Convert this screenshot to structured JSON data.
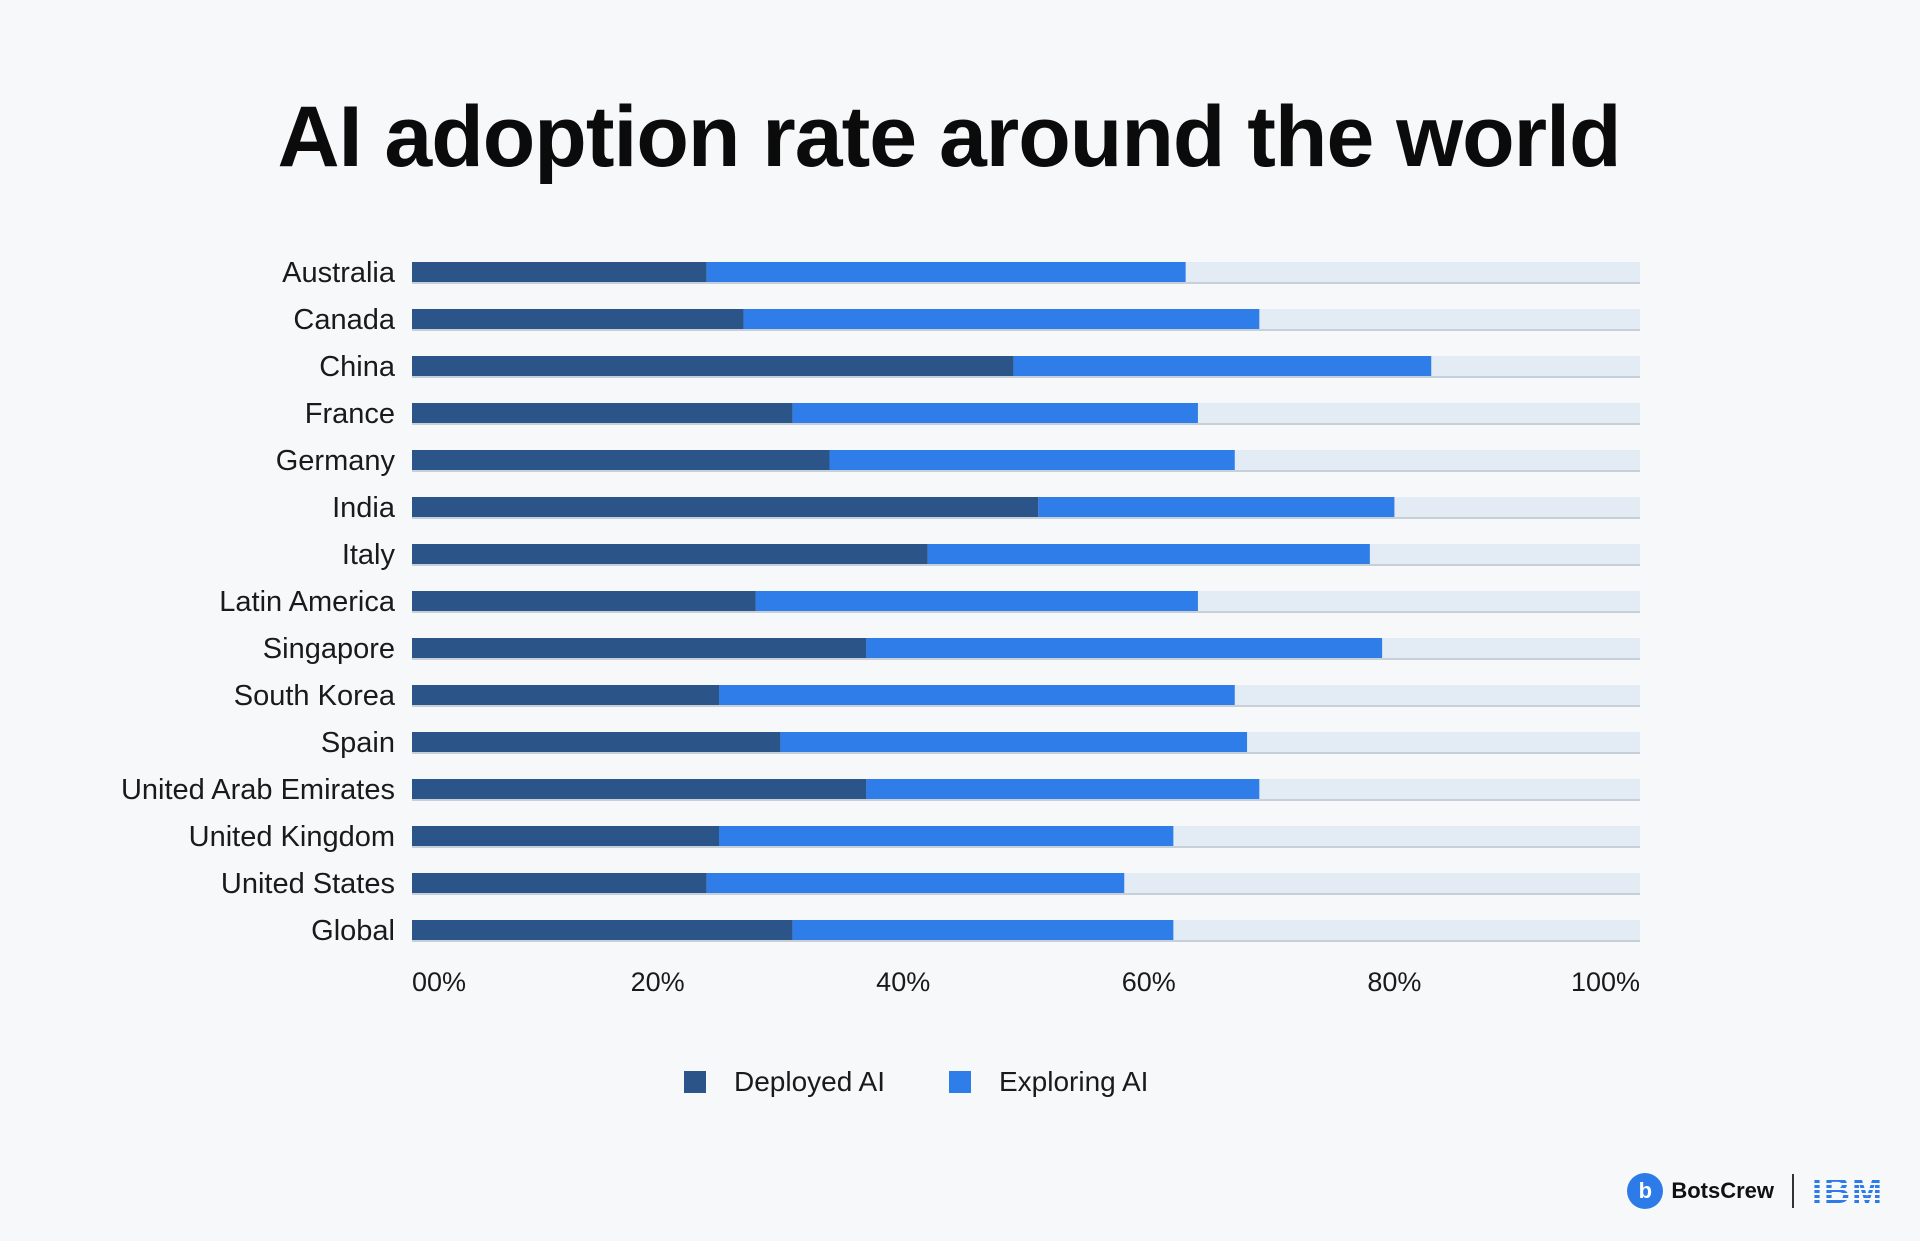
{
  "title": "AI adoption rate around the world",
  "colors": {
    "deployed": "#2b5488",
    "exploring": "#2e7de9",
    "track": "#e3ebf5",
    "background": "#f6f8fa"
  },
  "chart_data": {
    "type": "bar",
    "orientation": "horizontal",
    "stacked": true,
    "title": "AI adoption rate around the world",
    "categories": [
      "Australia",
      "Canada",
      "China",
      "France",
      "Germany",
      "India",
      "Italy",
      "Latin America",
      "Singapore",
      "South Korea",
      "Spain",
      "United Arab Emirates",
      "United Kingdom",
      "United States",
      "Global"
    ],
    "series": [
      {
        "name": "Deployed AI",
        "values": [
          24,
          27,
          49,
          31,
          34,
          51,
          42,
          28,
          37,
          25,
          30,
          37,
          25,
          24,
          31
        ]
      },
      {
        "name": "Exploring AI",
        "values": [
          39,
          42,
          34,
          33,
          33,
          29,
          36,
          36,
          42,
          42,
          38,
          32,
          37,
          34,
          31
        ]
      }
    ],
    "x_ticks": [
      "00%",
      "20%",
      "40%",
      "60%",
      "80%",
      "100%"
    ],
    "xlim": [
      0,
      100
    ],
    "legend": "bottom-center",
    "grid": false
  },
  "legend": {
    "items": [
      {
        "label": "Deployed AI",
        "color": "#2b5488"
      },
      {
        "label": "Exploring AI",
        "color": "#2e7de9"
      }
    ]
  },
  "footer": {
    "brand_icon_letter": "b",
    "brand": "BotsCrew",
    "partner": "IBM"
  }
}
